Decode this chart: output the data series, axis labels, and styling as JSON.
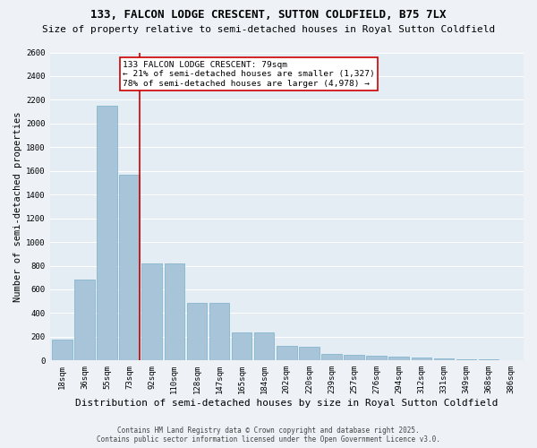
{
  "title": "133, FALCON LODGE CRESCENT, SUTTON COLDFIELD, B75 7LX",
  "subtitle": "Size of property relative to semi-detached houses in Royal Sutton Coldfield",
  "xlabel": "Distribution of semi-detached houses by size in Royal Sutton Coldfield",
  "ylabel": "Number of semi-detached properties",
  "footer_line1": "Contains HM Land Registry data © Crown copyright and database right 2025.",
  "footer_line2": "Contains public sector information licensed under the Open Government Licence v3.0.",
  "bin_labels": [
    "18sqm",
    "36sqm",
    "55sqm",
    "73sqm",
    "92sqm",
    "110sqm",
    "128sqm",
    "147sqm",
    "165sqm",
    "184sqm",
    "202sqm",
    "220sqm",
    "239sqm",
    "257sqm",
    "276sqm",
    "294sqm",
    "312sqm",
    "331sqm",
    "349sqm",
    "368sqm",
    "386sqm"
  ],
  "bar_values": [
    175,
    680,
    2150,
    1570,
    820,
    820,
    490,
    490,
    240,
    240,
    120,
    115,
    55,
    50,
    40,
    35,
    22,
    20,
    10,
    8,
    5
  ],
  "bar_color": "#a8c4d8",
  "bar_edge_color": "#7aafc8",
  "property_line_bin": 3,
  "annotation_text": "133 FALCON LODGE CRESCENT: 79sqm\n← 21% of semi-detached houses are smaller (1,327)\n78% of semi-detached houses are larger (4,978) →",
  "red_line_color": "#cc0000",
  "annotation_box_facecolor": "#ffffff",
  "annotation_box_edgecolor": "#cc0000",
  "ylim": [
    0,
    2600
  ],
  "yticks": [
    0,
    200,
    400,
    600,
    800,
    1000,
    1200,
    1400,
    1600,
    1800,
    2000,
    2200,
    2400,
    2600
  ],
  "background_color": "#eef2f7",
  "plot_bg_color": "#e4ecf4",
  "grid_color": "#ffffff",
  "title_fontsize": 9,
  "subtitle_fontsize": 8,
  "xlabel_fontsize": 8,
  "ylabel_fontsize": 7.5,
  "tick_fontsize": 6.5,
  "annotation_fontsize": 6.8,
  "footer_fontsize": 5.5
}
